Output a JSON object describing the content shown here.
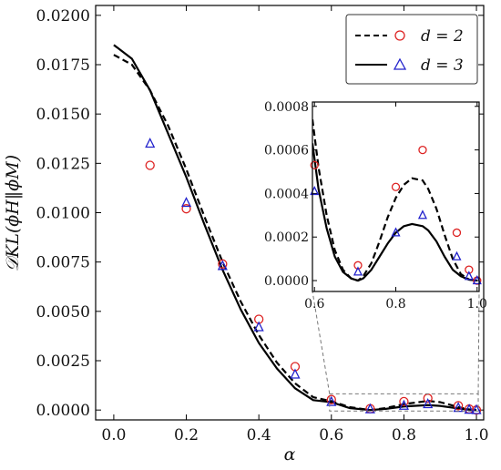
{
  "chart_data": {
    "type": "line",
    "xlabel": "α",
    "ylabel": "𝒟KL(ϕH‖ϕM)",
    "xlim": [
      -0.05,
      1.02
    ],
    "ylim": [
      -0.0005,
      0.0205
    ],
    "xticks": [
      "0.0",
      "0.2",
      "0.4",
      "0.6",
      "0.8",
      "1.0"
    ],
    "xtick_values": [
      0.0,
      0.2,
      0.4,
      0.6,
      0.8,
      1.0
    ],
    "yticks": [
      "0.0000",
      "0.0025",
      "0.0050",
      "0.0075",
      "0.0100",
      "0.0125",
      "0.0150",
      "0.0175",
      "0.0200"
    ],
    "ytick_values": [
      0.0,
      0.0025,
      0.005,
      0.0075,
      0.01,
      0.0125,
      0.015,
      0.0175,
      0.02
    ],
    "legend_position": "top-right",
    "series": [
      {
        "name": "d = 2",
        "style": "dashed",
        "color": "#000000",
        "marker": "circle",
        "marker_color": "#dd2222",
        "curve_x": [
          0.0,
          0.05,
          0.1,
          0.15,
          0.2,
          0.25,
          0.3,
          0.35,
          0.4,
          0.45,
          0.5,
          0.55,
          0.6,
          0.65,
          0.707,
          0.75,
          0.8,
          0.866,
          0.9,
          0.95,
          0.98,
          1.0
        ],
        "curve_y": [
          0.018,
          0.0175,
          0.0162,
          0.0144,
          0.0122,
          0.0098,
          0.0075,
          0.0055,
          0.0038,
          0.0024,
          0.00135,
          0.00065,
          0.00045,
          0.00015,
          0.0,
          0.0001,
          0.0003,
          0.00046,
          0.0004,
          0.00015,
          3e-05,
          0.0
        ],
        "points_x": [
          0.1,
          0.2,
          0.3,
          0.4,
          0.5,
          0.6,
          0.707,
          0.8,
          0.866,
          0.95,
          0.98,
          1.0
        ],
        "points_y": [
          0.0124,
          0.0102,
          0.0074,
          0.0046,
          0.0022,
          0.00053,
          7e-05,
          0.00043,
          0.0006,
          0.00022,
          5e-05,
          0.0
        ]
      },
      {
        "name": "d = 3",
        "style": "solid",
        "color": "#000000",
        "marker": "triangle",
        "marker_color": "#2222cc",
        "curve_x": [
          0.0,
          0.05,
          0.1,
          0.15,
          0.2,
          0.25,
          0.3,
          0.35,
          0.4,
          0.45,
          0.5,
          0.55,
          0.6,
          0.65,
          0.707,
          0.75,
          0.8,
          0.866,
          0.9,
          0.95,
          0.98,
          1.0
        ],
        "curve_y": [
          0.0185,
          0.0178,
          0.0162,
          0.014,
          0.0118,
          0.0094,
          0.0071,
          0.0051,
          0.0034,
          0.0021,
          0.0011,
          0.0005,
          0.0004,
          0.0001,
          0.0,
          6e-05,
          0.00018,
          0.00025,
          0.00021,
          8e-05,
          2e-05,
          0.0
        ],
        "points_x": [
          0.1,
          0.2,
          0.3,
          0.4,
          0.5,
          0.6,
          0.707,
          0.8,
          0.866,
          0.95,
          0.98,
          1.0
        ],
        "points_y": [
          0.0135,
          0.0105,
          0.0073,
          0.0042,
          0.0018,
          0.00041,
          4e-05,
          0.00022,
          0.0003,
          0.00011,
          2e-05,
          0.0
        ]
      }
    ],
    "inset": {
      "xlim": [
        0.595,
        1.005
      ],
      "ylim": [
        -5e-05,
        0.00082
      ],
      "xticks": [
        "0.6",
        "0.8",
        "1.0"
      ],
      "xtick_values": [
        0.6,
        0.8,
        1.0
      ],
      "yticks": [
        "0.0000",
        "0.0002",
        "0.0004",
        "0.0006",
        "0.0008"
      ],
      "ytick_values": [
        0.0,
        0.0002,
        0.0004,
        0.0006,
        0.0008
      ],
      "curve_x": [
        0.595,
        0.61,
        0.63,
        0.65,
        0.67,
        0.69,
        0.707,
        0.72,
        0.74,
        0.76,
        0.78,
        0.8,
        0.82,
        0.84,
        0.866,
        0.88,
        0.9,
        0.92,
        0.94,
        0.96,
        0.98,
        1.0
      ],
      "curve_y_d2": [
        0.00074,
        0.00052,
        0.0003,
        0.00014,
        5e-05,
        1e-05,
        0.0,
        2e-05,
        8e-05,
        0.00018,
        0.00029,
        0.00038,
        0.00044,
        0.00047,
        0.00046,
        0.00042,
        0.00033,
        0.00021,
        0.0001,
        3e-05,
        5e-06,
        0.0
      ],
      "curve_y_d3": [
        0.00063,
        0.00042,
        0.00024,
        0.00011,
        4e-05,
        1e-05,
        0.0,
        1e-05,
        5e-05,
        0.00011,
        0.00017,
        0.00022,
        0.00025,
        0.00026,
        0.00025,
        0.00023,
        0.00018,
        0.00011,
        5e-05,
        2e-05,
        4e-06,
        0.0
      ]
    }
  }
}
